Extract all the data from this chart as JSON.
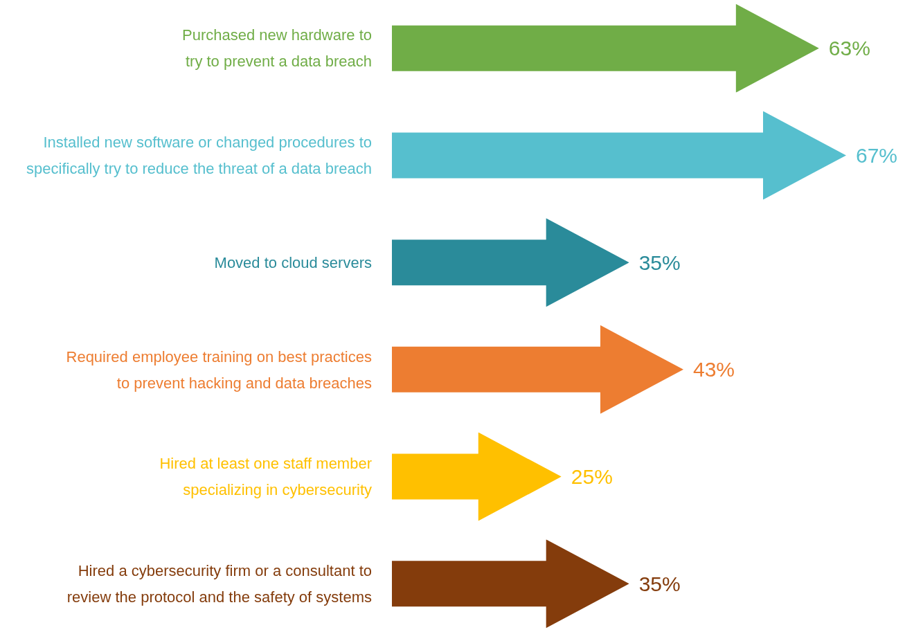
{
  "chart_data": {
    "type": "bar",
    "orientation": "horizontal",
    "categories": [
      "Purchased new hardware to\ntry to prevent a data breach",
      "Installed new software or changed procedures to\nspecifically try to reduce the threat of a data breach",
      "Moved to cloud servers",
      "Required employee training on best practices\nto prevent hacking and data breaches",
      "Hired at least one staff member\nspecializing in cybersecurity",
      "Hired a cybersecurity firm or a consultant to\nreview the protocol and the safety of systems"
    ],
    "values": [
      63,
      67,
      35,
      43,
      25,
      35
    ],
    "value_labels": [
      "63%",
      "67%",
      "35%",
      "43%",
      "25%",
      "35%"
    ],
    "colors": [
      "#70ad47",
      "#56bfce",
      "#2a8b9a",
      "#ed7d31",
      "#ffc000",
      "#843c0c"
    ]
  }
}
